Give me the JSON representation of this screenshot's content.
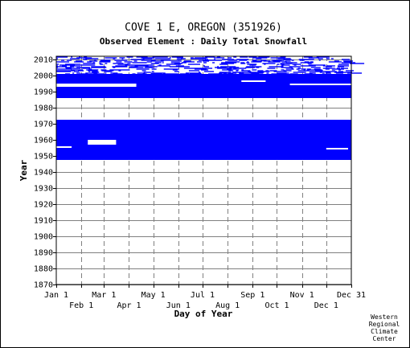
{
  "title": "COVE 1 E, OREGON   (351926)",
  "subtitle": "Observed Element : Daily Total Snowfall",
  "credit": [
    "Western",
    "Regional",
    "Climate",
    "Center"
  ],
  "colors": {
    "data": "#0000ff",
    "grid": "#808080",
    "axis": "#000000"
  },
  "chart_data": {
    "type": "heatmap",
    "title": "COVE 1 E, OREGON   (351926)",
    "subtitle": "Observed Element : Daily Total Snowfall",
    "xlabel": "Day of Year",
    "ylabel": "Year",
    "xlim": [
      1,
      366
    ],
    "ylim": [
      1870,
      2012
    ],
    "x_ticks_upper": [
      {
        "label": "Jan 1",
        "day": 1
      },
      {
        "label": "Mar 1",
        "day": 60
      },
      {
        "label": "May 1",
        "day": 121
      },
      {
        "label": "Jul 1",
        "day": 182
      },
      {
        "label": "Sep 1",
        "day": 244
      },
      {
        "label": "Nov 1",
        "day": 305
      },
      {
        "label": "Dec 31",
        "day": 366
      }
    ],
    "x_ticks_lower": [
      {
        "label": "Feb 1",
        "day": 32
      },
      {
        "label": "Apr 1",
        "day": 91
      },
      {
        "label": "Jun 1",
        "day": 152
      },
      {
        "label": "Aug 1",
        "day": 213
      },
      {
        "label": "Oct 1",
        "day": 274
      },
      {
        "label": "Dec 1",
        "day": 335
      }
    ],
    "y_ticks": [
      1870,
      1880,
      1890,
      1900,
      1910,
      1920,
      1930,
      1940,
      1950,
      1960,
      1970,
      1980,
      1990,
      2000,
      2010
    ],
    "grid": true,
    "observed_periods": [
      {
        "start_year": 1947.5,
        "end_year": 1972.5,
        "coverage": "mostly complete"
      },
      {
        "start_year": 1986,
        "end_year": 2001,
        "coverage": "mostly complete"
      },
      {
        "start_year": 2001,
        "end_year": 2012,
        "coverage": "sparse"
      }
    ],
    "gaps": [
      {
        "start_year": 1957,
        "end_year": 1960,
        "start_day": 40,
        "end_day": 75
      },
      {
        "start_year": 1955,
        "end_year": 1956,
        "start_day": 1,
        "end_day": 20
      },
      {
        "start_year": 1954,
        "end_year": 1955,
        "start_day": 335,
        "end_day": 362
      },
      {
        "start_year": 1993,
        "end_year": 1995,
        "start_day": 1,
        "end_day": 100
      },
      {
        "start_year": 1994,
        "end_year": 1995,
        "start_day": 290,
        "end_day": 366
      },
      {
        "start_year": 1996,
        "end_year": 1997,
        "start_day": 230,
        "end_day": 260
      }
    ]
  }
}
